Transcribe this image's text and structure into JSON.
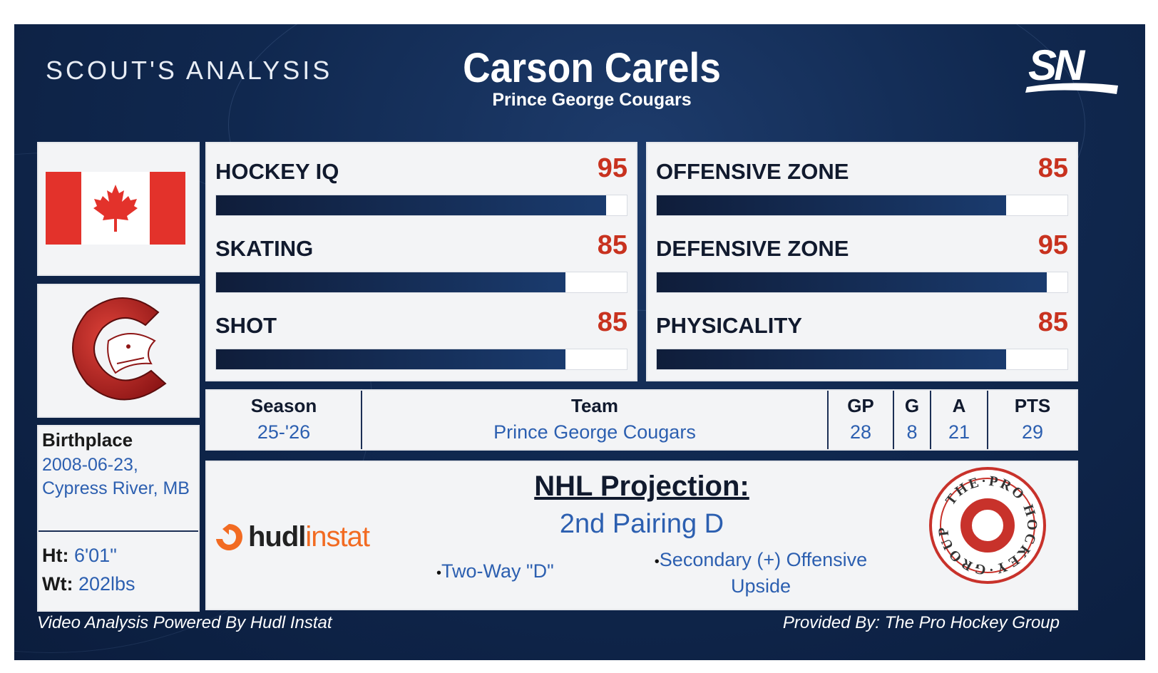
{
  "header": {
    "section_title": "SCOUT'S ANALYSIS",
    "player_name": "Carson Carels",
    "team": "Prince George Cougars",
    "network_logo": "SN"
  },
  "profile": {
    "flag": "canada-flag-icon",
    "team_logo": "cougars-logo-icon",
    "birthplace_label": "Birthplace",
    "birthplace_value": "2008-06-23, Cypress River, MB",
    "height_label": "Ht:",
    "height_value": "6'01\"",
    "weight_label": "Wt:",
    "weight_value": "202lbs"
  },
  "ratings_left": [
    {
      "label": "HOCKEY IQ",
      "value": 95,
      "fill": 0.95
    },
    {
      "label": "SKATING",
      "value": 85,
      "fill": 0.85
    },
    {
      "label": "SHOT",
      "value": 85,
      "fill": 0.85
    }
  ],
  "ratings_right": [
    {
      "label": "OFFENSIVE ZONE",
      "value": 85,
      "fill": 0.85
    },
    {
      "label": "DEFENSIVE ZONE",
      "value": 95,
      "fill": 0.95
    },
    {
      "label": "PHYSICALITY",
      "value": 85,
      "fill": 0.85
    }
  ],
  "stats": {
    "headers": [
      "Season",
      "Team",
      "GP",
      "G",
      "A",
      "PTS"
    ],
    "values": [
      "25-'26",
      "Prince George Cougars",
      "28",
      "8",
      "21",
      "29"
    ]
  },
  "projection": {
    "title": "NHL Projection:",
    "role": "2nd Pairing D",
    "bullet_1": "Two-Way \"D\"",
    "bullet_2": "Secondary (+) Offensive Upside",
    "hudl_word1": "hudl",
    "hudl_word2": "instat",
    "partner_logo_text": "THE·PRO HOCKEY·GROUP"
  },
  "footer": {
    "left": "Video Analysis Powered By Hudl Instat",
    "right": "Provided By: The Pro Hockey Group"
  },
  "colors": {
    "background": "#10284f",
    "rating_value": "#c8321f",
    "link_blue": "#2c5fb0",
    "bar_fill": "#12264a",
    "hudl_orange": "#f26b22"
  }
}
